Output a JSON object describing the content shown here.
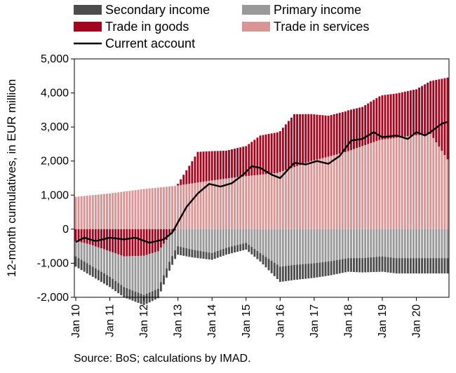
{
  "chart_data": {
    "type": "bar",
    "stacked": true,
    "ylabel": "12-month cumulatives, in EUR million",
    "ylim": [
      -2000,
      5000
    ],
    "yticks": [
      -2000,
      -1000,
      0,
      1000,
      2000,
      3000,
      4000,
      5000
    ],
    "ytick_labels": [
      "-2,000",
      "-1,000",
      "0",
      "1,000",
      "2,000",
      "3,000",
      "4,000",
      "5,000"
    ],
    "x_start": "2010-01",
    "x_end": "2020-12",
    "xtick_labels": [
      "Jan 10",
      "Jan 11",
      "Jan 12",
      "Jan 13",
      "Jan 14",
      "Jan 15",
      "Jan 16",
      "Jan 17",
      "Jan 18",
      "Jan 19",
      "Jan 20"
    ],
    "grid": false,
    "legend_position": "top",
    "colors": {
      "secondary_income": "#4d4d4d",
      "primary_income": "#999999",
      "trade_in_goods": "#a3051e",
      "trade_in_services": "#d99494",
      "current_account": "#000000"
    },
    "series": [
      {
        "key": "trade_in_services",
        "name": "Trade in services",
        "type": "bar",
        "anchors": [
          [
            "2010-01",
            950
          ],
          [
            "2011-01",
            1050
          ],
          [
            "2012-01",
            1180
          ],
          [
            "2012-12",
            1270
          ],
          [
            "2013-12",
            1420
          ],
          [
            "2014-12",
            1550
          ],
          [
            "2015-12",
            1650
          ],
          [
            "2016-12",
            2000
          ],
          [
            "2017-12",
            2260
          ],
          [
            "2018-12",
            2620
          ],
          [
            "2019-12",
            2750
          ],
          [
            "2020-06",
            2800
          ],
          [
            "2020-12",
            2050
          ]
        ]
      },
      {
        "key": "trade_in_goods",
        "name": "Trade in goods",
        "type": "bar",
        "anchors": [
          [
            "2010-01",
            -350
          ],
          [
            "2010-06",
            -450
          ],
          [
            "2011-01",
            -650
          ],
          [
            "2011-06",
            -800
          ],
          [
            "2012-01",
            -780
          ],
          [
            "2012-06",
            -650
          ],
          [
            "2012-10",
            -200
          ],
          [
            "2013-01",
            50
          ],
          [
            "2013-06",
            650
          ],
          [
            "2013-08",
            900
          ],
          [
            "2014-06",
            820
          ],
          [
            "2015-01",
            880
          ],
          [
            "2015-06",
            1150
          ],
          [
            "2016-01",
            1200
          ],
          [
            "2016-06",
            1550
          ],
          [
            "2017-01",
            1350
          ],
          [
            "2017-06",
            1200
          ],
          [
            "2018-01",
            1200
          ],
          [
            "2018-06",
            1150
          ],
          [
            "2019-01",
            1300
          ],
          [
            "2019-06",
            1300
          ],
          [
            "2020-01",
            1350
          ],
          [
            "2020-06",
            1550
          ],
          [
            "2020-12",
            2400
          ]
        ]
      },
      {
        "key": "primary_income",
        "name": "Primary income",
        "type": "bar",
        "anchors": [
          [
            "2010-01",
            -450
          ],
          [
            "2010-06",
            -600
          ],
          [
            "2011-01",
            -750
          ],
          [
            "2011-06",
            -900
          ],
          [
            "2012-01",
            -1150
          ],
          [
            "2012-06",
            -1100
          ],
          [
            "2013-01",
            -500
          ],
          [
            "2013-06",
            -600
          ],
          [
            "2014-01",
            -700
          ],
          [
            "2014-06",
            -550
          ],
          [
            "2015-01",
            -400
          ],
          [
            "2015-06",
            -700
          ],
          [
            "2016-01",
            -1100
          ],
          [
            "2016-06",
            -1050
          ],
          [
            "2017-01",
            -1000
          ],
          [
            "2017-06",
            -950
          ],
          [
            "2018-01",
            -850
          ],
          [
            "2018-06",
            -850
          ],
          [
            "2019-01",
            -800
          ],
          [
            "2019-06",
            -850
          ],
          [
            "2020-01",
            -850
          ],
          [
            "2020-06",
            -850
          ],
          [
            "2020-12",
            -850
          ]
        ]
      },
      {
        "key": "secondary_income",
        "name": "Secondary income",
        "type": "bar",
        "anchors": [
          [
            "2010-01",
            -300
          ],
          [
            "2011-01",
            -300
          ],
          [
            "2012-01",
            -300
          ],
          [
            "2013-01",
            -250
          ],
          [
            "2014-01",
            -200
          ],
          [
            "2015-01",
            -200
          ],
          [
            "2015-06",
            -250
          ],
          [
            "2016-01",
            -450
          ],
          [
            "2017-01",
            -430
          ],
          [
            "2018-01",
            -400
          ],
          [
            "2019-01",
            -450
          ],
          [
            "2020-01",
            -450
          ],
          [
            "2020-12",
            -450
          ]
        ]
      },
      {
        "key": "current_account",
        "name": "Current account",
        "type": "line",
        "anchors": [
          [
            "2010-01",
            -380
          ],
          [
            "2010-04",
            -250
          ],
          [
            "2010-08",
            -350
          ],
          [
            "2011-01",
            -250
          ],
          [
            "2011-06",
            -300
          ],
          [
            "2011-10",
            -250
          ],
          [
            "2012-03",
            -400
          ],
          [
            "2012-08",
            -300
          ],
          [
            "2012-11",
            -100
          ],
          [
            "2013-01",
            200
          ],
          [
            "2013-04",
            650
          ],
          [
            "2013-08",
            1050
          ],
          [
            "2013-12",
            1330
          ],
          [
            "2014-04",
            1250
          ],
          [
            "2014-08",
            1350
          ],
          [
            "2014-12",
            1600
          ],
          [
            "2015-03",
            1850
          ],
          [
            "2015-06",
            1800
          ],
          [
            "2015-10",
            1600
          ],
          [
            "2016-01",
            1500
          ],
          [
            "2016-06",
            1950
          ],
          [
            "2016-10",
            1900
          ],
          [
            "2017-02",
            2000
          ],
          [
            "2017-06",
            1920
          ],
          [
            "2017-10",
            2150
          ],
          [
            "2018-02",
            2600
          ],
          [
            "2018-06",
            2650
          ],
          [
            "2018-10",
            2850
          ],
          [
            "2019-01",
            2700
          ],
          [
            "2019-06",
            2750
          ],
          [
            "2019-10",
            2650
          ],
          [
            "2020-01",
            2850
          ],
          [
            "2020-04",
            2750
          ],
          [
            "2020-06",
            2850
          ],
          [
            "2020-10",
            3100
          ],
          [
            "2020-12",
            3150
          ]
        ]
      }
    ],
    "legend": [
      {
        "label": "Secondary income",
        "key": "secondary_income",
        "marker": "box"
      },
      {
        "label": "Primary income",
        "key": "primary_income",
        "marker": "box"
      },
      {
        "label": "Trade in goods",
        "key": "trade_in_goods",
        "marker": "box"
      },
      {
        "label": "Trade in services",
        "key": "trade_in_services",
        "marker": "box"
      },
      {
        "label": "Current account",
        "key": "current_account",
        "marker": "line"
      }
    ]
  },
  "source_text": "Source: BoS; calculations by IMAD."
}
